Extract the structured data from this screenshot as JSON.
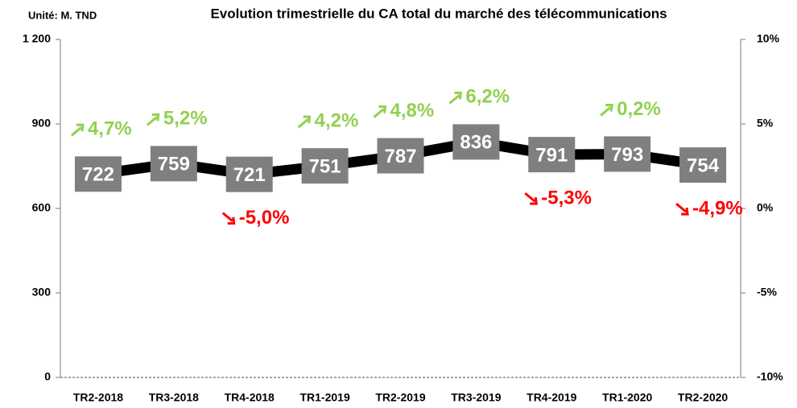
{
  "chart_data": {
    "type": "line",
    "title": "Evolution trimestrielle du CA total du marché des télécommunications",
    "unit": "Unité: M. TND",
    "categories": [
      "TR2-2018",
      "TR3-2018",
      "TR4-2018",
      "TR1-2019",
      "TR2-2019",
      "TR3-2019",
      "TR4-2019",
      "TR1-2020",
      "TR2-2020"
    ],
    "series": [
      {
        "color": "#000000",
        "label_color": "#7f7f7f",
        "values": [
          722,
          759,
          721,
          751,
          787,
          836,
          791,
          793,
          754
        ]
      }
    ],
    "growth": {
      "values": [
        4.7,
        5.2,
        -5.0,
        4.2,
        4.8,
        6.2,
        -5.3,
        0.2,
        -4.9
      ],
      "value_labels": [
        "4,7%",
        "5,2%",
        "-5,0%",
        "4,2%",
        "4,8%",
        "6,2%",
        "-5,3%",
        "0,2%",
        "-4,9%"
      ],
      "positive_color": "#92d050",
      "negative_color": "#ff0000"
    },
    "ylim": [
      0,
      1200
    ],
    "yticks": [
      0,
      300,
      600,
      900,
      {
        "value": 1200,
        "label": "1 200"
      }
    ],
    "y2lim": [
      -10,
      10
    ],
    "y2ticks": [
      {
        "value": -10,
        "label": "-10%"
      },
      {
        "value": -5,
        "label": "-5%"
      },
      {
        "value": 0,
        "label": "0%"
      },
      {
        "value": 5,
        "label": "5%"
      },
      {
        "value": 10,
        "label": "10%"
      }
    ],
    "grid": false
  }
}
